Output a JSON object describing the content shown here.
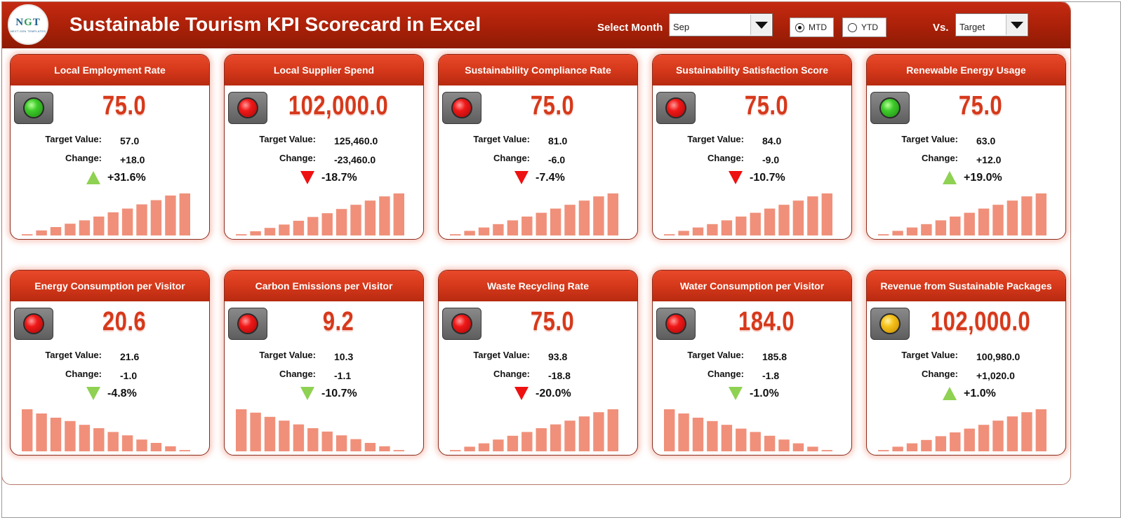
{
  "header": {
    "logo_text": "NGT",
    "logo_sub": "NEXT GEN TEMPLATES",
    "title": "Sustainable Tourism KPI Scorecard in Excel",
    "select_month_label": "Select Month",
    "month_value": "Sep",
    "mtd_label": "MTD",
    "ytd_label": "YTD",
    "mtd_selected": true,
    "vs_label": "Vs.",
    "vs_value": "Target"
  },
  "labels": {
    "target": "Target Value:",
    "change": "Change:"
  },
  "colors": {
    "header": "#a92008",
    "accent": "#d6391b",
    "bar": "#f0907a",
    "up": "#8fd152",
    "down": "#ee1111"
  },
  "kpis": [
    {
      "title": "Local Employment Rate",
      "value": "75.0",
      "target": "57.0",
      "change": "+18.0",
      "pct": "+31.6%",
      "status": "green",
      "direction": "up",
      "arrow_color": "green",
      "trend": [
        0.03,
        0.12,
        0.2,
        0.28,
        0.36,
        0.45,
        0.55,
        0.64,
        0.74,
        0.84,
        0.95,
        1.0
      ]
    },
    {
      "title": "Local Supplier Spend",
      "value": "102,000.0",
      "target": "125,460.0",
      "change": "-23,460.0",
      "pct": "-18.7%",
      "status": "red",
      "direction": "down",
      "arrow_color": "red",
      "trend": [
        0.03,
        0.1,
        0.18,
        0.26,
        0.35,
        0.44,
        0.53,
        0.63,
        0.73,
        0.83,
        0.93,
        1.0
      ]
    },
    {
      "title": "Sustainability Compliance Rate",
      "value": "75.0",
      "target": "81.0",
      "change": "-6.0",
      "pct": "-7.4%",
      "status": "red",
      "direction": "down",
      "arrow_color": "red",
      "trend": [
        0.03,
        0.11,
        0.19,
        0.27,
        0.36,
        0.45,
        0.54,
        0.64,
        0.73,
        0.83,
        0.93,
        1.0
      ]
    },
    {
      "title": "Sustainability Satisfaction Score",
      "value": "75.0",
      "target": "84.0",
      "change": "-9.0",
      "pct": "-10.7%",
      "status": "red",
      "direction": "down",
      "arrow_color": "red",
      "trend": [
        0.03,
        0.11,
        0.19,
        0.27,
        0.36,
        0.45,
        0.54,
        0.64,
        0.73,
        0.83,
        0.93,
        1.0
      ]
    },
    {
      "title": "Renewable Energy Usage",
      "value": "75.0",
      "target": "63.0",
      "change": "+12.0",
      "pct": "+19.0%",
      "status": "green",
      "direction": "up",
      "arrow_color": "green",
      "trend": [
        0.03,
        0.11,
        0.19,
        0.27,
        0.36,
        0.45,
        0.54,
        0.64,
        0.73,
        0.83,
        0.93,
        1.0
      ]
    },
    {
      "title": "Energy Consumption per Visitor",
      "value": "20.6",
      "target": "21.6",
      "change": "-1.0",
      "pct": "-4.8%",
      "status": "red",
      "direction": "down",
      "arrow_color": "green",
      "trend": [
        1.0,
        0.9,
        0.8,
        0.72,
        0.63,
        0.55,
        0.46,
        0.38,
        0.28,
        0.2,
        0.12,
        0.03
      ]
    },
    {
      "title": "Carbon Emissions per Visitor",
      "value": "9.2",
      "target": "10.3",
      "change": "-1.1",
      "pct": "-10.7%",
      "status": "red",
      "direction": "down",
      "arrow_color": "green",
      "trend": [
        1.0,
        0.92,
        0.82,
        0.73,
        0.64,
        0.55,
        0.47,
        0.38,
        0.29,
        0.2,
        0.12,
        0.03
      ]
    },
    {
      "title": "Waste Recycling Rate",
      "value": "75.0",
      "target": "93.8",
      "change": "-18.8",
      "pct": "-20.0%",
      "status": "red",
      "direction": "down",
      "arrow_color": "red",
      "trend": [
        0.03,
        0.11,
        0.19,
        0.28,
        0.37,
        0.46,
        0.55,
        0.64,
        0.73,
        0.83,
        0.93,
        1.0
      ]
    },
    {
      "title": "Water Consumption per Visitor",
      "value": "184.0",
      "target": "185.8",
      "change": "-1.8",
      "pct": "-1.0%",
      "status": "red",
      "direction": "down",
      "arrow_color": "green",
      "trend": [
        1.0,
        0.9,
        0.8,
        0.72,
        0.63,
        0.54,
        0.46,
        0.37,
        0.28,
        0.19,
        0.11,
        0.03
      ]
    },
    {
      "title": "Revenue from Sustainable Packages",
      "value": "102,000.0",
      "target": "100,980.0",
      "change": "+1,020.0",
      "pct": "+1.0%",
      "status": "amber",
      "direction": "up",
      "arrow_color": "green",
      "trend": [
        0.03,
        0.11,
        0.19,
        0.27,
        0.36,
        0.45,
        0.54,
        0.63,
        0.73,
        0.83,
        0.93,
        1.0
      ]
    }
  ]
}
